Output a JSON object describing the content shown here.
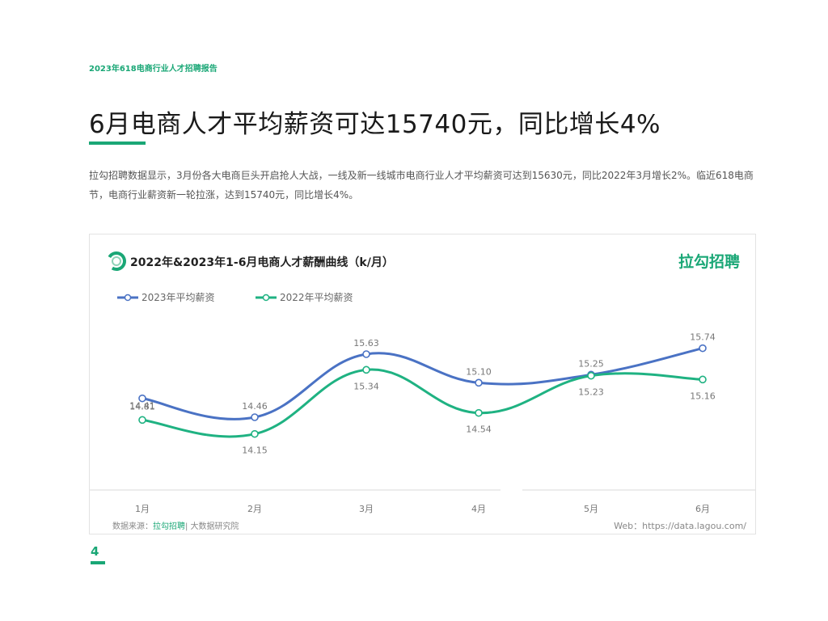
{
  "header": {
    "report_label": "2023年618电商行业人才招聘报告"
  },
  "page": {
    "title": "6月电商人才平均薪资可达15740元，同比增长4%",
    "intro": "拉勾招聘数据显示，3月份各大电商巨头开启抢人大战，一线及新一线城市电商行业人才平均薪资可达到15630元，同比2022年3月增长2%。临近618电商节，电商行业薪资新一轮拉涨，达到15740元，同比增长4%。",
    "page_number": "4"
  },
  "chart": {
    "brand": "拉勾招聘",
    "source_prefix": "数据来源：",
    "source_brand": "拉勾招聘",
    "source_suffix": "| 大数据研究院",
    "web": "Web：https://data.lagou.com/"
  },
  "colors": {
    "accent": "#1aa776",
    "series_2023": "#4a72c4",
    "series_2022": "#1fb282"
  },
  "chart_data": {
    "type": "line",
    "title": "2022年&2023年1-6月电商人才薪酬曲线（k/月）",
    "categories": [
      "1月",
      "2月",
      "3月",
      "4月",
      "5月",
      "6月"
    ],
    "series": [
      {
        "name": "2023年平均薪资",
        "values": [
          14.81,
          14.46,
          15.63,
          15.1,
          15.25,
          15.74
        ],
        "labels": [
          "14.81",
          "14.46",
          "15.63",
          "15.10",
          "15.25",
          "15.74"
        ]
      },
      {
        "name": "2022年平均薪资",
        "values": [
          14.41,
          14.15,
          15.34,
          14.54,
          15.23,
          15.16
        ],
        "labels": [
          "14.41",
          "14.15",
          "15.34",
          "14.54",
          "15.23",
          "15.16"
        ]
      }
    ],
    "legend": "top-left",
    "grid": false
  }
}
